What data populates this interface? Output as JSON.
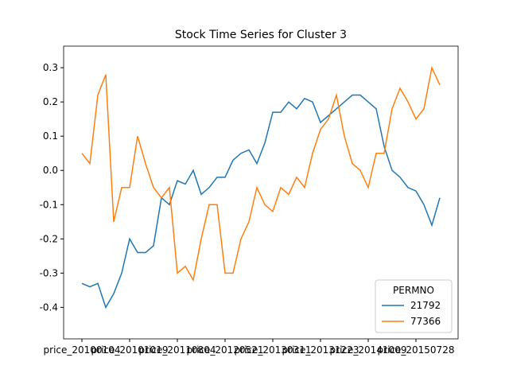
{
  "chart_data": {
    "type": "line",
    "title": "Stock Time Series for Cluster 3",
    "x": [
      0,
      1,
      2,
      3,
      4,
      5,
      6,
      7,
      8,
      9,
      10,
      11,
      12,
      13,
      14,
      15,
      16,
      17,
      18,
      19,
      20,
      21,
      22,
      23,
      24,
      25,
      26,
      27,
      28,
      29,
      30,
      31,
      32,
      33,
      34,
      35,
      36,
      37,
      38,
      39,
      40,
      41,
      42,
      43,
      44,
      45
    ],
    "xlim": [
      -2.3,
      47.3
    ],
    "xticks": [
      {
        "value": 0,
        "label": "price_20100104"
      },
      {
        "value": 6,
        "label": "price_20101019"
      },
      {
        "value": 12,
        "label": "price_20110804"
      },
      {
        "value": 18,
        "label": "price_20120521"
      },
      {
        "value": 24,
        "label": "price_20130311"
      },
      {
        "value": 30,
        "label": "price_20131223"
      },
      {
        "value": 36,
        "label": "price_20141009"
      },
      {
        "value": 42,
        "label": "price_20150728"
      }
    ],
    "ylim": [
      -0.492,
      0.363
    ],
    "yticks": [
      -0.4,
      -0.3,
      -0.2,
      -0.1,
      {
        "value": 0,
        "label": "0.0"
      },
      0.1,
      0.2,
      0.3
    ],
    "legend_title": "PERMNO",
    "legend": "lower right",
    "series": [
      {
        "name": "21792",
        "color": "#1f77b4",
        "values": [
          -0.33,
          -0.34,
          -0.33,
          -0.4,
          -0.36,
          -0.3,
          -0.2,
          -0.24,
          -0.24,
          -0.22,
          -0.08,
          -0.1,
          -0.03,
          -0.04,
          0.0,
          -0.07,
          -0.05,
          -0.02,
          -0.02,
          0.03,
          0.05,
          0.06,
          0.02,
          0.08,
          0.17,
          0.17,
          0.2,
          0.18,
          0.21,
          0.2,
          0.14,
          0.16,
          0.18,
          0.2,
          0.22,
          0.22,
          0.2,
          0.18,
          0.07,
          0.0,
          -0.02,
          -0.05,
          -0.06,
          -0.1,
          -0.16,
          -0.08
        ]
      },
      {
        "name": "77366",
        "color": "#ff7f0e",
        "values": [
          0.05,
          0.02,
          0.22,
          0.28,
          -0.15,
          -0.05,
          -0.05,
          0.1,
          0.02,
          -0.05,
          -0.08,
          -0.05,
          -0.3,
          -0.28,
          -0.32,
          -0.2,
          -0.1,
          -0.1,
          -0.3,
          -0.3,
          -0.2,
          -0.15,
          -0.05,
          -0.1,
          -0.12,
          -0.05,
          -0.07,
          -0.02,
          -0.05,
          0.05,
          0.12,
          0.15,
          0.22,
          0.1,
          0.02,
          0.0,
          -0.05,
          0.05,
          0.05,
          0.18,
          0.24,
          0.2,
          0.15,
          0.18,
          0.3,
          0.25
        ]
      }
    ]
  }
}
